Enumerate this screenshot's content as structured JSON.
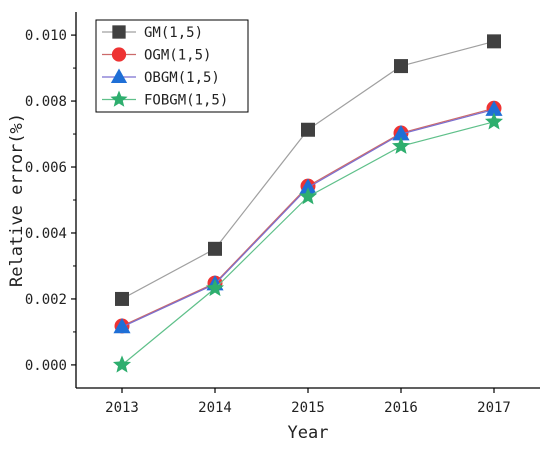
{
  "chart_data": {
    "type": "line",
    "xlabel": "Year",
    "ylabel": "Relative error(%)",
    "categories": [
      "2013",
      "2014",
      "2015",
      "2016",
      "2017"
    ],
    "ylim": [
      -0.0007,
      0.0107
    ],
    "yticks": [
      0.0,
      0.002,
      0.004,
      0.006,
      0.008,
      0.01
    ],
    "ytick_labels": [
      "0.000",
      "0.002",
      "0.004",
      "0.006",
      "0.008",
      "0.010"
    ],
    "grid": false,
    "legend_position": "top-left",
    "series": [
      {
        "name": "GM(1,5)",
        "values": [
          0.002,
          0.00352,
          0.00713,
          0.00906,
          0.00981
        ],
        "color": "#404040",
        "line_color": "#a0a0a0",
        "marker": "square"
      },
      {
        "name": "OGM(1,5)",
        "values": [
          0.00118,
          0.00248,
          0.00542,
          0.00703,
          0.00778
        ],
        "color": "#ee3333",
        "line_color": "#cc6a6a",
        "marker": "circle"
      },
      {
        "name": "OBGM(1,5)",
        "values": [
          0.00115,
          0.00245,
          0.00538,
          0.007,
          0.00774
        ],
        "color": "#1f6fd6",
        "line_color": "#7a6fd0",
        "marker": "triangle"
      },
      {
        "name": "FOBGM(1,5)",
        "values": [
          0.0,
          0.00232,
          0.0051,
          0.00663,
          0.00737
        ],
        "color": "#2eae6e",
        "line_color": "#5fc08a",
        "marker": "star"
      }
    ]
  }
}
